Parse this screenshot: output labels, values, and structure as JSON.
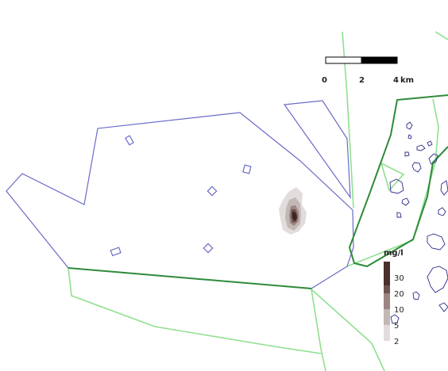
{
  "scale_bar": {
    "ticks": [
      "0",
      "2",
      "4"
    ],
    "unit": "km"
  },
  "legend": {
    "title": "mg/l",
    "classes": [
      {
        "label": "30",
        "color": "#4a2f2c"
      },
      {
        "label": "20",
        "color": "#6e5450"
      },
      {
        "label": "10",
        "color": "#9a8582"
      },
      {
        "label": "5",
        "color": "#c2b8b6"
      },
      {
        "label": "2",
        "color": "#e2dddc"
      }
    ]
  },
  "colors": {
    "boundary_blue": "#6b6bc8",
    "boundary_light_green": "#8fe08f",
    "boundary_dark_green": "#2e8b3a",
    "water_outline": "#2a2a8a",
    "plume_dark": "#3b2525",
    "plume_light": "#d8d2d1"
  }
}
